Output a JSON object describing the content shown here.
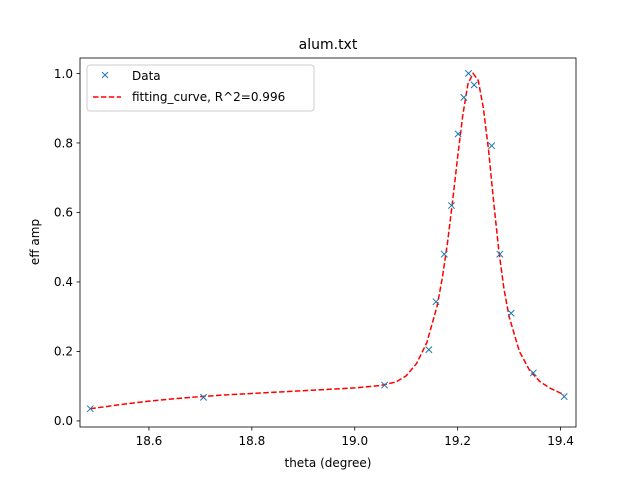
{
  "chart_data": {
    "type": "scatter",
    "title": "alum.txt",
    "xlabel": "theta (degree)",
    "ylabel": "eff amp",
    "xlim": [
      18.466,
      19.43
    ],
    "ylim": [
      -0.0175,
      1.0445
    ],
    "xticks": [
      18.6,
      18.8,
      19.0,
      19.2,
      19.4
    ],
    "yticks": [
      0.0,
      0.2,
      0.4,
      0.6,
      0.8,
      1.0
    ],
    "xtick_labels": [
      "18.6",
      "18.8",
      "19.0",
      "19.2",
      "19.4"
    ],
    "ytick_labels": [
      "0.0",
      "0.2",
      "0.4",
      "0.6",
      "0.8",
      "1.0"
    ],
    "grid": false,
    "legend_position": "top-left",
    "series": [
      {
        "name": "Data",
        "kind": "markers",
        "marker": "x",
        "color": "#1f77b4",
        "x": [
          18.486,
          18.706,
          19.058,
          19.144,
          19.158,
          19.174,
          19.188,
          19.201,
          19.212,
          19.221,
          19.232,
          19.266,
          19.282,
          19.304,
          19.347,
          19.407
        ],
        "y": [
          0.035,
          0.068,
          0.103,
          0.205,
          0.343,
          0.48,
          0.62,
          0.826,
          0.931,
          1.0,
          0.967,
          0.792,
          0.48,
          0.31,
          0.138,
          0.07
        ]
      },
      {
        "name": "fitting_curve, R^2=0.996",
        "kind": "line",
        "linestyle": "dashed",
        "color": "#ff0000",
        "x": [
          18.486,
          18.55,
          18.6,
          18.65,
          18.7,
          18.75,
          18.8,
          18.85,
          18.9,
          18.95,
          19.0,
          19.05,
          19.08,
          19.1,
          19.12,
          19.14,
          19.16,
          19.17,
          19.18,
          19.19,
          19.2,
          19.21,
          19.22,
          19.23,
          19.24,
          19.25,
          19.26,
          19.27,
          19.28,
          19.29,
          19.3,
          19.32,
          19.34,
          19.36,
          19.38,
          19.4,
          19.407
        ],
        "y": [
          0.035,
          0.048,
          0.057,
          0.064,
          0.07,
          0.075,
          0.079,
          0.083,
          0.087,
          0.091,
          0.095,
          0.102,
          0.112,
          0.13,
          0.165,
          0.225,
          0.33,
          0.41,
          0.51,
          0.63,
          0.76,
          0.88,
          0.97,
          1.0,
          0.98,
          0.9,
          0.78,
          0.63,
          0.49,
          0.38,
          0.3,
          0.2,
          0.145,
          0.113,
          0.094,
          0.08,
          0.076
        ]
      }
    ]
  }
}
